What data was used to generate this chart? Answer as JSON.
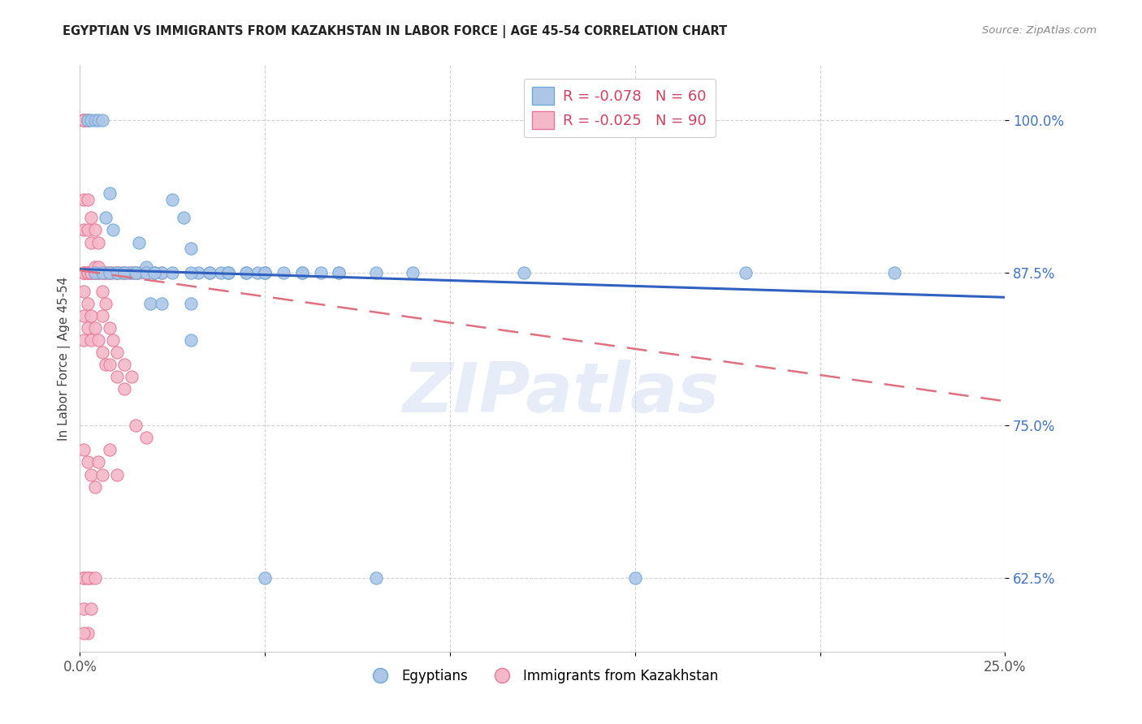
{
  "title": "EGYPTIAN VS IMMIGRANTS FROM KAZAKHSTAN IN LABOR FORCE | AGE 45-54 CORRELATION CHART",
  "source": "Source: ZipAtlas.com",
  "ylabel": "In Labor Force | Age 45-54",
  "ytick_values": [
    0.625,
    0.75,
    0.875,
    1.0
  ],
  "ytick_labels": [
    "62.5%",
    "75.0%",
    "87.5%",
    "100.0%"
  ],
  "xlim": [
    0.0,
    0.25
  ],
  "ylim": [
    0.565,
    1.045
  ],
  "legend_blue_r": "-0.078",
  "legend_blue_n": "60",
  "legend_pink_r": "-0.025",
  "legend_pink_n": "90",
  "watermark_text": "ZIPatlas",
  "blue_scatter_color": "#adc6e8",
  "blue_scatter_edge": "#6fa8d6",
  "pink_scatter_color": "#f4b8c8",
  "pink_scatter_edge": "#e87898",
  "blue_line_color": "#3060c0",
  "pink_line_color": "#e07080",
  "blue_points_x": [
    0.002,
    0.003,
    0.004,
    0.005,
    0.006,
    0.007,
    0.008,
    0.009,
    0.01,
    0.012,
    0.014,
    0.015,
    0.016,
    0.018,
    0.02,
    0.022,
    0.025,
    0.028,
    0.03,
    0.032,
    0.035,
    0.038,
    0.04,
    0.045,
    0.048,
    0.05,
    0.055,
    0.06,
    0.065,
    0.07,
    0.08,
    0.09,
    0.004,
    0.006,
    0.008,
    0.01,
    0.012,
    0.015,
    0.018,
    0.02,
    0.025,
    0.03,
    0.035,
    0.04,
    0.045,
    0.05,
    0.06,
    0.07,
    0.019,
    0.022,
    0.03,
    0.03,
    0.04,
    0.05,
    0.18,
    0.22,
    0.12,
    0.05,
    0.15,
    0.08
  ],
  "blue_points_y": [
    1.0,
    1.0,
    1.0,
    1.0,
    1.0,
    0.92,
    0.94,
    0.91,
    0.875,
    0.875,
    0.875,
    0.875,
    0.9,
    0.88,
    0.875,
    0.875,
    0.935,
    0.92,
    0.895,
    0.875,
    0.875,
    0.875,
    0.875,
    0.875,
    0.875,
    0.875,
    0.875,
    0.875,
    0.875,
    0.875,
    0.875,
    0.875,
    0.875,
    0.875,
    0.875,
    0.875,
    0.875,
    0.875,
    0.875,
    0.875,
    0.875,
    0.875,
    0.875,
    0.875,
    0.875,
    0.875,
    0.875,
    0.875,
    0.85,
    0.85,
    0.85,
    0.82,
    0.875,
    0.875,
    0.875,
    0.875,
    0.875,
    0.625,
    0.625,
    0.625
  ],
  "pink_points_x": [
    0.001,
    0.001,
    0.001,
    0.001,
    0.001,
    0.001,
    0.001,
    0.001,
    0.002,
    0.002,
    0.002,
    0.002,
    0.002,
    0.003,
    0.003,
    0.003,
    0.004,
    0.004,
    0.005,
    0.005,
    0.006,
    0.006,
    0.007,
    0.007,
    0.008,
    0.008,
    0.009,
    0.01,
    0.01,
    0.011,
    0.012,
    0.013,
    0.014,
    0.015,
    0.016,
    0.018,
    0.02,
    0.022,
    0.001,
    0.001,
    0.002,
    0.002,
    0.003,
    0.003,
    0.004,
    0.004,
    0.005,
    0.005,
    0.006,
    0.006,
    0.007,
    0.008,
    0.009,
    0.01,
    0.012,
    0.014,
    0.001,
    0.001,
    0.001,
    0.002,
    0.002,
    0.003,
    0.003,
    0.004,
    0.005,
    0.006,
    0.007,
    0.008,
    0.01,
    0.012,
    0.015,
    0.018,
    0.001,
    0.002,
    0.003,
    0.004,
    0.005,
    0.006,
    0.008,
    0.01,
    0.001,
    0.002,
    0.003,
    0.001,
    0.002,
    0.001,
    0.003,
    0.004,
    0.002,
    0.001
  ],
  "pink_points_y": [
    1.0,
    1.0,
    1.0,
    1.0,
    1.0,
    0.875,
    0.875,
    0.875,
    1.0,
    1.0,
    0.875,
    0.875,
    0.875,
    0.875,
    0.875,
    0.875,
    0.875,
    0.875,
    0.875,
    0.875,
    0.875,
    0.875,
    0.875,
    0.875,
    0.875,
    0.875,
    0.875,
    0.875,
    0.875,
    0.875,
    0.875,
    0.875,
    0.875,
    0.875,
    0.875,
    0.875,
    0.875,
    0.875,
    0.935,
    0.91,
    0.935,
    0.91,
    0.92,
    0.9,
    0.91,
    0.88,
    0.9,
    0.88,
    0.86,
    0.84,
    0.85,
    0.83,
    0.82,
    0.81,
    0.8,
    0.79,
    0.86,
    0.84,
    0.82,
    0.85,
    0.83,
    0.84,
    0.82,
    0.83,
    0.82,
    0.81,
    0.8,
    0.8,
    0.79,
    0.78,
    0.75,
    0.74,
    0.73,
    0.72,
    0.71,
    0.7,
    0.72,
    0.71,
    0.73,
    0.71,
    0.625,
    0.625,
    0.625,
    0.625,
    0.625,
    0.6,
    0.6,
    0.625,
    0.58,
    0.58
  ]
}
